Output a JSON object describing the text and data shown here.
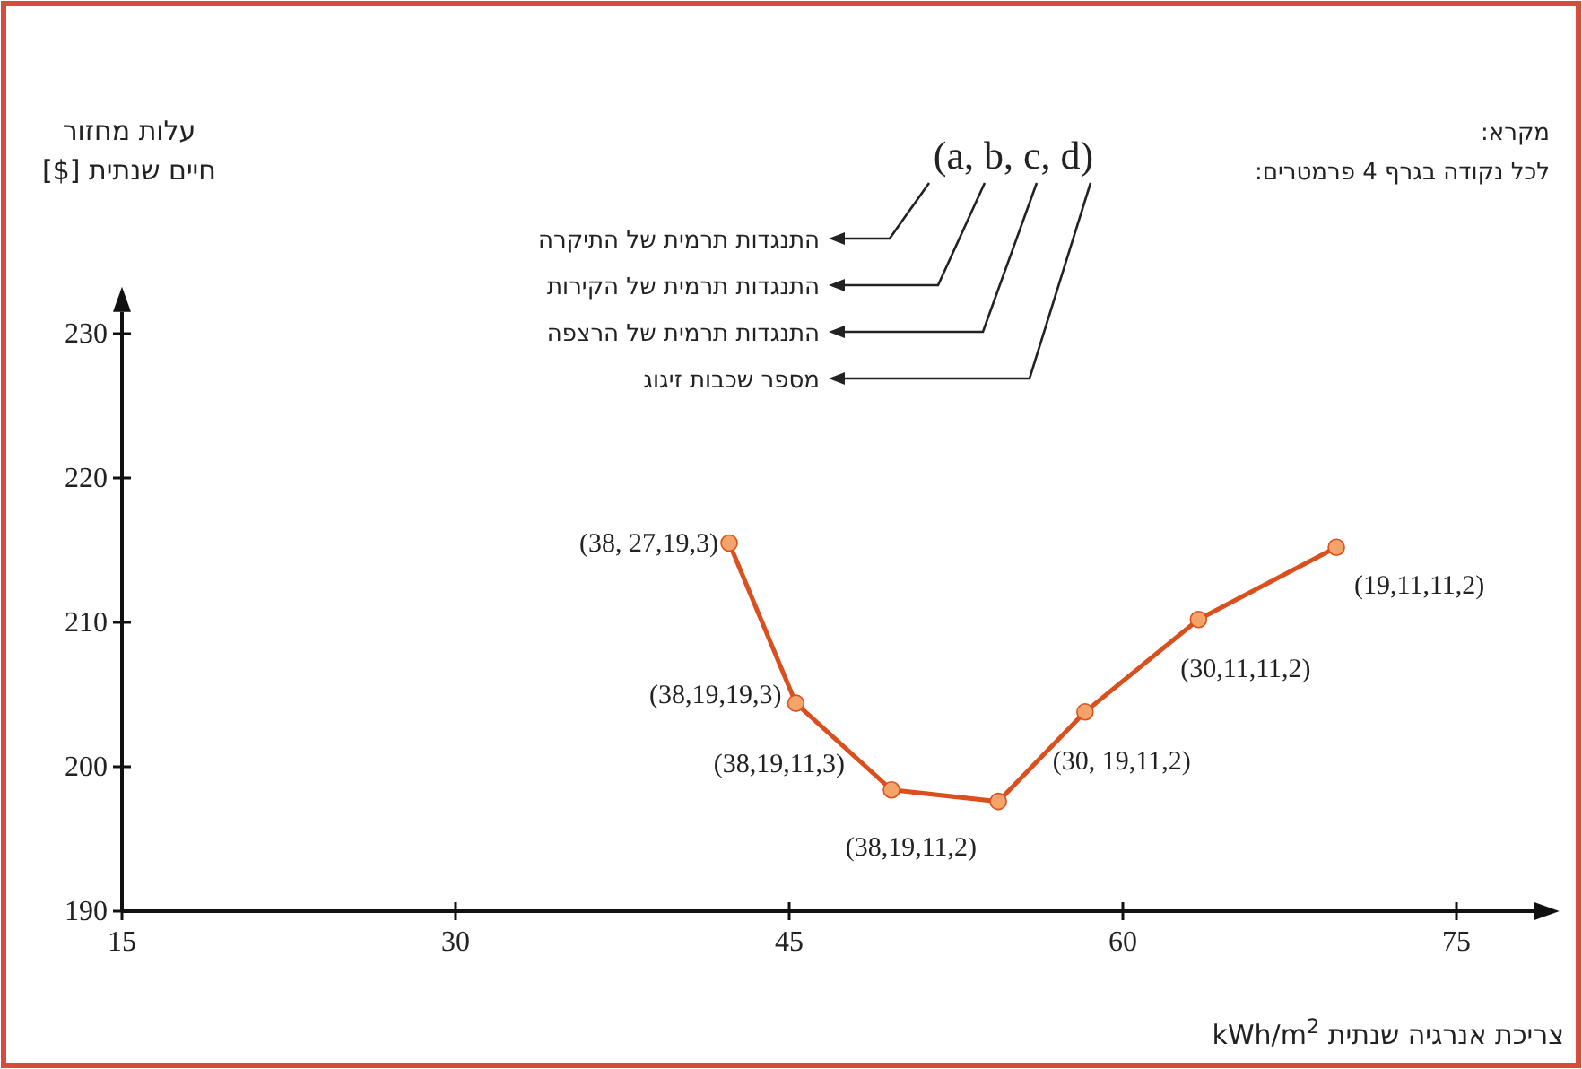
{
  "chart_data": {
    "type": "line",
    "xlabel": "צריכת אנרגיה שנתית kWh/m$^{2}$",
    "ylabel": "עלות מחזור חיים שנתית [$]",
    "xlim": [
      15,
      78.5
    ],
    "ylim": [
      190,
      231.5
    ],
    "xticks": [
      15,
      30,
      45,
      60,
      75
    ],
    "yticks": [
      190,
      200,
      210,
      220,
      230
    ],
    "grid": false,
    "marker": "circle",
    "line_style": "solid",
    "x": [
      42.3,
      45.3,
      49.6,
      54.4,
      58.3,
      63.4,
      69.6
    ],
    "series": [
      {
        "color": "#d9501e",
        "values": [
          215.5,
          204.4,
          198.4,
          197.6,
          203.8,
          210.2,
          215.2
        ]
      }
    ],
    "annotations": [
      "מקרא:",
      "לכל נקודה בגרף 4 פרמטרים:",
      "(a, b, c, d)",
      "התנגדות תרמית של התיקרה",
      "התנגדות תרמית של הקירות",
      "התנגדות תרמית של הרצפה",
      "מספר שכבות זיגוג",
      {
        "text": "(38, 27,19,3)",
        "x": 42.3,
        "y": 215.5
      },
      {
        "text": "(38,19,19,3)",
        "x": 45.3,
        "y": 204.4
      },
      {
        "text": "(38,19,11,3)",
        "x": 49.6,
        "y": 198.4
      },
      {
        "text": "(38,19,11,2)",
        "x": 54.4,
        "y": 197.6
      },
      {
        "text": "(30, 19,11,2)",
        "x": 58.3,
        "y": 203.8
      },
      {
        "text": "(30,11,11,2)",
        "x": 63.4,
        "y": 210.2
      },
      {
        "text": "(19,11,11,2)",
        "x": 69.6,
        "y": 215.2
      }
    ]
  }
}
